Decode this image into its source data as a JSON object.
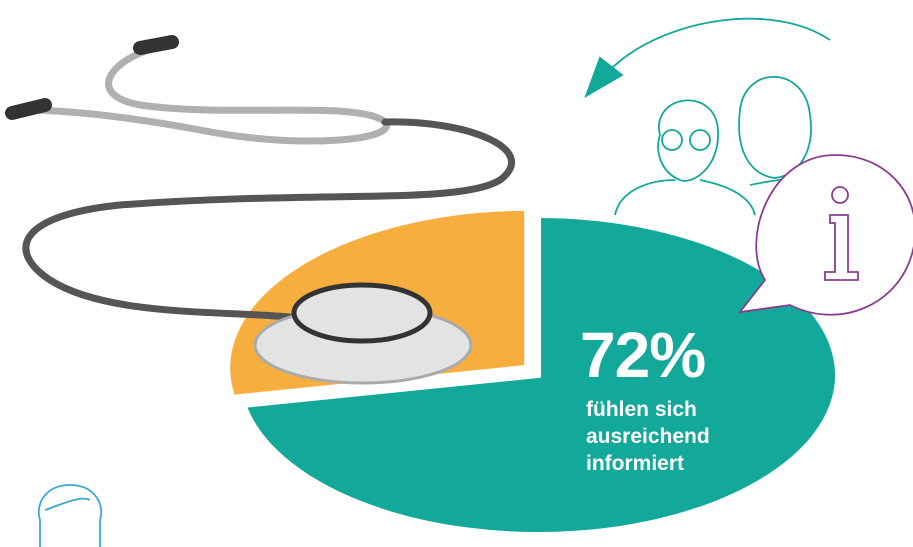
{
  "chart_data": {
    "type": "pie",
    "categories": [
      "fühlen sich ausreichend informiert",
      null
    ],
    "values": [
      72,
      28
    ],
    "value_labels": [
      "72%",
      null
    ],
    "colors": [
      "#12a89a",
      "#f6ae3f"
    ]
  }
}
